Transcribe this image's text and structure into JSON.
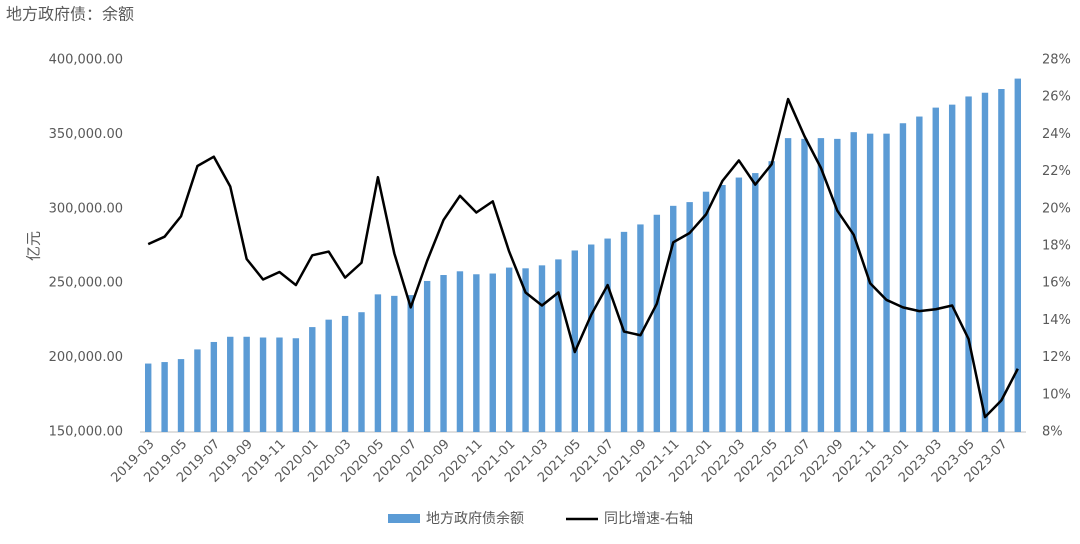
{
  "chart_data": {
    "type": "bar-line",
    "title": "地方政府债：余额",
    "y_label": "亿元",
    "categories": [
      "2019-03",
      null,
      "2019-05",
      null,
      "2019-07",
      null,
      "2019-09",
      null,
      "2019-11",
      null,
      "2020-01",
      null,
      "2020-03",
      null,
      "2020-05",
      null,
      "2020-07",
      null,
      "2020-09",
      null,
      "2020-11",
      null,
      "2021-01",
      null,
      "2021-03",
      null,
      "2021-05",
      null,
      "2021-07",
      null,
      "2021-09",
      null,
      "2021-11",
      null,
      "2022-01",
      null,
      "2022-03",
      null,
      "2022-05",
      null,
      "2022-07",
      null,
      "2022-09",
      null,
      "2022-11",
      null,
      "2023-01",
      null,
      "2023-03",
      null,
      "2023-05",
      null,
      "2023-07",
      null
    ],
    "series": [
      {
        "name": "地方政府债余额",
        "type": "bar",
        "color": "#5b9bd5",
        "axis": "y",
        "values": [
          196000,
          197000,
          199000,
          205500,
          210500,
          214000,
          214000,
          213500,
          213500,
          213000,
          220500,
          225500,
          228000,
          230500,
          242500,
          241500,
          242000,
          251500,
          255500,
          258000,
          256000,
          256500,
          260500,
          260000,
          262000,
          266000,
          272000,
          276000,
          280000,
          284500,
          289500,
          296000,
          302000,
          304500,
          311500,
          316000,
          321000,
          324000,
          332000,
          347500,
          347000,
          347500,
          347000,
          351500,
          350500,
          350500,
          357500,
          362000,
          368000,
          370000,
          375500,
          378000,
          380500,
          387500
        ]
      },
      {
        "name": "同比增速-右轴",
        "type": "line",
        "color": "#000000",
        "axis": "y2",
        "values": [
          18.1,
          18.5,
          19.6,
          22.3,
          22.8,
          21.2,
          17.3,
          16.2,
          16.6,
          15.9,
          17.5,
          17.7,
          16.3,
          17.1,
          21.7,
          17.6,
          14.7,
          17.2,
          19.4,
          20.7,
          19.8,
          20.4,
          17.7,
          15.5,
          14.8,
          15.5,
          12.3,
          14.3,
          15.9,
          13.4,
          13.2,
          14.9,
          18.2,
          18.7,
          19.7,
          21.5,
          22.6,
          21.3,
          22.4,
          25.9,
          23.9,
          22.2,
          19.9,
          18.6,
          16.0,
          15.1,
          14.7,
          14.5,
          14.6,
          14.8,
          13.0,
          8.8,
          9.7,
          11.4
        ]
      }
    ],
    "ylim": [
      150000,
      400000
    ],
    "yticks": [
      {
        "value": 150000,
        "label": "150,000.00"
      },
      {
        "value": 200000,
        "label": "200,000.00"
      },
      {
        "value": 250000,
        "label": "250,000.00"
      },
      {
        "value": 300000,
        "label": "300,000.00"
      },
      {
        "value": 350000,
        "label": "350,000.00"
      },
      {
        "value": 400000,
        "label": "400,000.00"
      }
    ],
    "y2lim": [
      8,
      28
    ],
    "y2ticks": [
      {
        "value": 8,
        "label": "8%"
      },
      {
        "value": 10,
        "label": "10%"
      },
      {
        "value": 12,
        "label": "12%"
      },
      {
        "value": 14,
        "label": "14%"
      },
      {
        "value": 16,
        "label": "16%"
      },
      {
        "value": 18,
        "label": "18%"
      },
      {
        "value": 20,
        "label": "20%"
      },
      {
        "value": 22,
        "label": "22%"
      },
      {
        "value": 24,
        "label": "24%"
      },
      {
        "value": 26,
        "label": "26%"
      },
      {
        "value": 28,
        "label": "28%"
      }
    ],
    "legend": "bottom"
  }
}
